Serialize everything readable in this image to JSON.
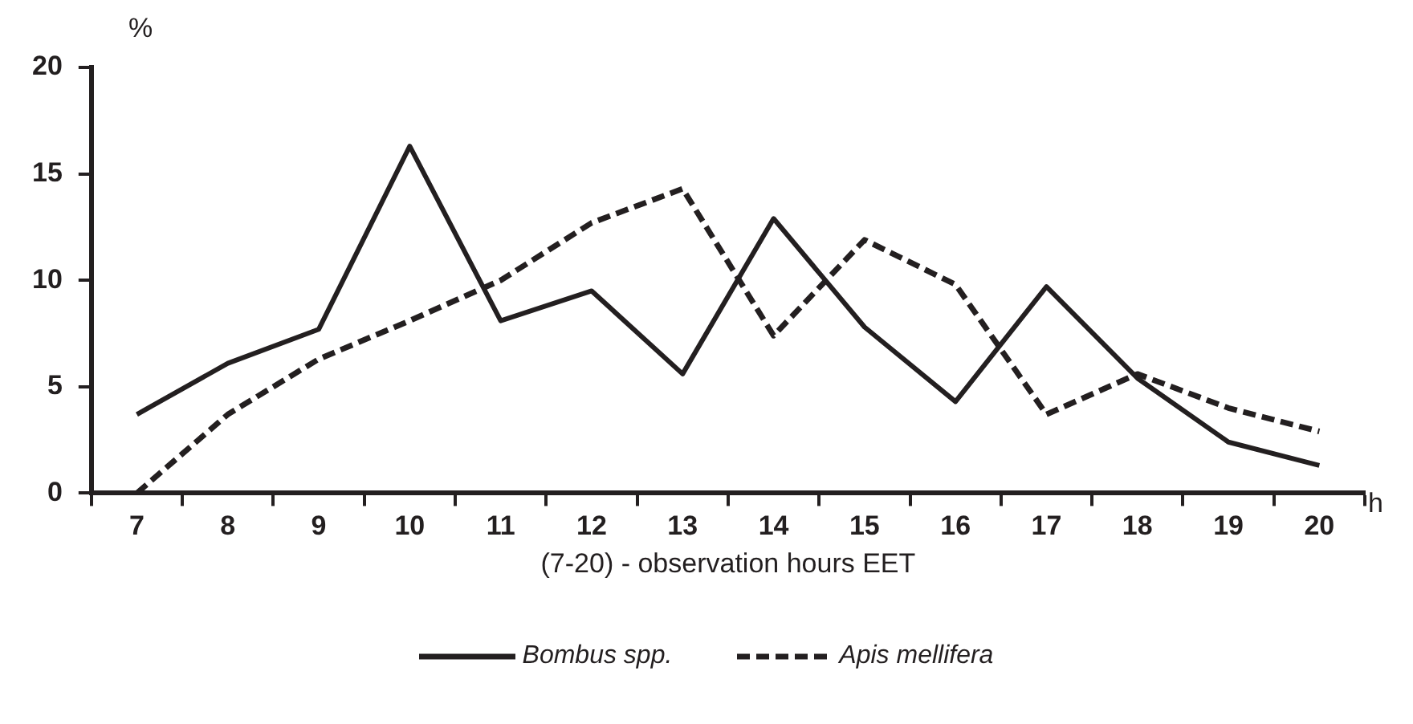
{
  "chart_data": {
    "type": "line",
    "ylabel": "%",
    "xlabel": "(7-20) - observation hours EET",
    "annotations": [
      "h"
    ],
    "categories": [
      "7",
      "8",
      "9",
      "10",
      "11",
      "12",
      "13",
      "14",
      "15",
      "16",
      "17",
      "18",
      "19",
      "20"
    ],
    "series": [
      {
        "name": "Bombus spp.",
        "color": "#231f20",
        "line_style": "solid",
        "values": [
          3.7,
          6.1,
          7.7,
          16.3,
          8.1,
          9.5,
          5.6,
          12.9,
          7.8,
          4.3,
          9.7,
          5.4,
          2.4,
          1.3
        ]
      },
      {
        "name": "Apis mellifera",
        "color": "#231f20",
        "line_style": "dashed",
        "values": [
          0,
          3.7,
          6.3,
          8.1,
          10.0,
          12.7,
          14.3,
          7.4,
          11.9,
          9.8,
          3.7,
          5.6,
          4.0,
          2.9
        ]
      }
    ],
    "ylim": [
      0,
      20
    ],
    "yticks": [
      0,
      5,
      10,
      15,
      20
    ],
    "grid": false,
    "legend": "bottom",
    "marker": "none"
  }
}
